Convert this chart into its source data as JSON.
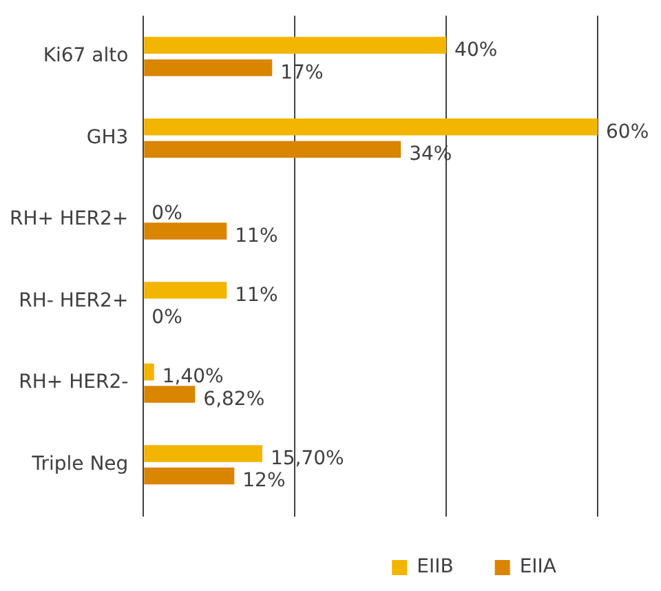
{
  "chart_data": {
    "type": "bar",
    "orientation": "horizontal",
    "categories": [
      "Ki67 alto",
      "GH3",
      "RH+ HER2+",
      "RH- HER2+",
      "RH+ HER2-",
      "Triple Neg"
    ],
    "series": [
      {
        "name": "EIIB",
        "color": "#f2b500",
        "values": [
          40,
          60,
          0,
          11,
          1.4,
          15.7
        ],
        "value_labels": [
          "40%",
          "60%",
          "0%",
          "11%",
          "1,40%",
          "15,70%"
        ]
      },
      {
        "name": "EIIA",
        "color": "#d98500",
        "values": [
          17,
          34,
          11,
          0,
          6.82,
          12
        ],
        "value_labels": [
          "17%",
          "34%",
          "11%",
          "0%",
          "6,82%",
          "12%"
        ]
      }
    ],
    "xlim": [
      0,
      60
    ],
    "xticks": [
      0,
      20,
      40,
      60
    ],
    "tick_labels": "y",
    "grid": "x",
    "legend": "bottom right"
  }
}
